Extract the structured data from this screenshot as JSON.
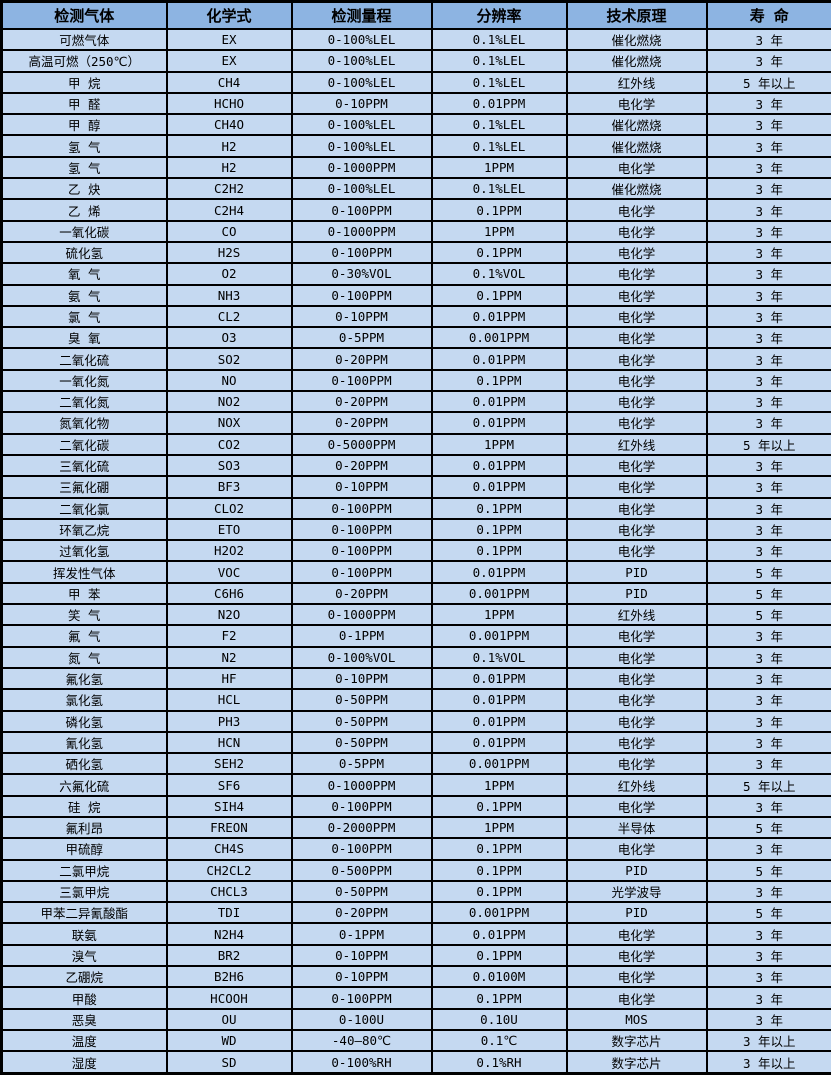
{
  "colors": {
    "header_bg": "#8DB4E2",
    "row_bg": "#C5D9F1",
    "border": "#000000",
    "text": "#000000"
  },
  "table": {
    "columns": [
      "检测气体",
      "化学式",
      "检测量程",
      "分辨率",
      "技术原理",
      "寿 命"
    ],
    "rows": [
      [
        "可燃气体",
        "EX",
        "0-100%LEL",
        "0.1%LEL",
        "催化燃烧",
        "3 年"
      ],
      [
        "高温可燃（250℃）",
        "EX",
        "0-100%LEL",
        "0.1%LEL",
        "催化燃烧",
        "3 年"
      ],
      [
        "甲 烷",
        "CH4",
        "0-100%LEL",
        "0.1%LEL",
        "红外线",
        "5 年以上"
      ],
      [
        "甲 醛",
        "HCHO",
        "0-10PPM",
        "0.01PPM",
        "电化学",
        "3 年"
      ],
      [
        "甲 醇",
        "CH4O",
        "0-100%LEL",
        "0.1%LEL",
        "催化燃烧",
        "3 年"
      ],
      [
        "氢 气",
        "H2",
        "0-100%LEL",
        "0.1%LEL",
        "催化燃烧",
        "3 年"
      ],
      [
        "氢 气",
        "H2",
        "0-1000PPM",
        "1PPM",
        "电化学",
        "3 年"
      ],
      [
        "乙 炔",
        "C2H2",
        "0-100%LEL",
        "0.1%LEL",
        "催化燃烧",
        "3 年"
      ],
      [
        "乙 烯",
        "C2H4",
        "0-100PPM",
        "0.1PPM",
        "电化学",
        "3 年"
      ],
      [
        "一氧化碳",
        "CO",
        "0-1000PPM",
        "1PPM",
        "电化学",
        "3 年"
      ],
      [
        "硫化氢",
        "H2S",
        "0-100PPM",
        "0.1PPM",
        "电化学",
        "3 年"
      ],
      [
        "氧 气",
        "O2",
        "0-30%VOL",
        "0.1%VOL",
        "电化学",
        "3 年"
      ],
      [
        "氨 气",
        "NH3",
        "0-100PPM",
        "0.1PPM",
        "电化学",
        "3 年"
      ],
      [
        "氯 气",
        "CL2",
        "0-10PPM",
        "0.01PPM",
        "电化学",
        "3 年"
      ],
      [
        "臭 氧",
        "O3",
        "0-5PPM",
        "0.001PPM",
        "电化学",
        "3 年"
      ],
      [
        "二氧化硫",
        "SO2",
        "0-20PPM",
        "0.01PPM",
        "电化学",
        "3 年"
      ],
      [
        "一氧化氮",
        "NO",
        "0-100PPM",
        "0.1PPM",
        "电化学",
        "3 年"
      ],
      [
        "二氧化氮",
        "NO2",
        "0-20PPM",
        "0.01PPM",
        "电化学",
        "3 年"
      ],
      [
        "氮氧化物",
        "NOX",
        "0-20PPM",
        "0.01PPM",
        "电化学",
        "3 年"
      ],
      [
        "二氧化碳",
        "CO2",
        "0-5000PPM",
        "1PPM",
        "红外线",
        "5 年以上"
      ],
      [
        "三氧化硫",
        "SO3",
        "0-20PPM",
        "0.01PPM",
        "电化学",
        "3 年"
      ],
      [
        "三氟化硼",
        "BF3",
        "0-10PPM",
        "0.01PPM",
        "电化学",
        "3 年"
      ],
      [
        "二氧化氯",
        "CLO2",
        "0-100PPM",
        "0.1PPM",
        "电化学",
        "3 年"
      ],
      [
        "环氧乙烷",
        "ETO",
        "0-100PPM",
        "0.1PPM",
        "电化学",
        "3 年"
      ],
      [
        "过氧化氢",
        "H2O2",
        "0-100PPM",
        "0.1PPM",
        "电化学",
        "3 年"
      ],
      [
        "挥发性气体",
        "VOC",
        "0-100PPM",
        "0.01PPM",
        "PID",
        "5 年"
      ],
      [
        "甲 苯",
        "C6H6",
        "0-20PPM",
        "0.001PPM",
        "PID",
        "5 年"
      ],
      [
        "笑 气",
        "N2O",
        "0-1000PPM",
        "1PPM",
        "红外线",
        "5 年"
      ],
      [
        "氟 气",
        "F2",
        "0-1PPM",
        "0.001PPM",
        "电化学",
        "3 年"
      ],
      [
        "氮 气",
        "N2",
        "0-100%VOL",
        "0.1%VOL",
        "电化学",
        "3 年"
      ],
      [
        "氟化氢",
        "HF",
        "0-10PPM",
        "0.01PPM",
        "电化学",
        "3 年"
      ],
      [
        "氯化氢",
        "HCL",
        "0-50PPM",
        "0.01PPM",
        "电化学",
        "3 年"
      ],
      [
        "磷化氢",
        "PH3",
        "0-50PPM",
        "0.01PPM",
        "电化学",
        "3 年"
      ],
      [
        "氰化氢",
        "HCN",
        "0-50PPM",
        "0.01PPM",
        "电化学",
        "3 年"
      ],
      [
        "硒化氢",
        "SEH2",
        "0-5PPM",
        "0.001PPM",
        "电化学",
        "3 年"
      ],
      [
        "六氟化硫",
        "SF6",
        "0-1000PPM",
        "1PPM",
        "红外线",
        "5 年以上"
      ],
      [
        "硅 烷",
        "SIH4",
        "0-100PPM",
        "0.1PPM",
        "电化学",
        "3 年"
      ],
      [
        "氟利昂",
        "FREON",
        "0-2000PPM",
        "1PPM",
        "半导体",
        "5 年"
      ],
      [
        "甲硫醇",
        "CH4S",
        "0-100PPM",
        "0.1PPM",
        "电化学",
        "3 年"
      ],
      [
        "二氯甲烷",
        "CH2CL2",
        "0-500PPM",
        "0.1PPM",
        "PID",
        "5 年"
      ],
      [
        "三氯甲烷",
        "CHCL3",
        "0-50PPM",
        "0.1PPM",
        "光学波导",
        "3 年"
      ],
      [
        "甲苯二异氰酸酯",
        "TDI",
        "0-20PPM",
        "0.001PPM",
        "PID",
        "5 年"
      ],
      [
        "联氨",
        "N2H4",
        "0-1PPM",
        "0.01PPM",
        "电化学",
        "3 年"
      ],
      [
        "溴气",
        "BR2",
        "0-10PPM",
        "0.1PPM",
        "电化学",
        "3 年"
      ],
      [
        "乙硼烷",
        "B2H6",
        "0-10PPM",
        "0.0100M",
        "电化学",
        "3 年"
      ],
      [
        "甲酸",
        "HCOOH",
        "0-100PPM",
        "0.1PPM",
        "电化学",
        "3 年"
      ],
      [
        "恶臭",
        "OU",
        "0-100U",
        "0.10U",
        "MOS",
        "3 年"
      ],
      [
        "温度",
        "WD",
        "-40—80℃",
        "0.1℃",
        "数字芯片",
        "3 年以上"
      ],
      [
        "湿度",
        "SD",
        "0-100%RH",
        "0.1%RH",
        "数字芯片",
        "3 年以上"
      ]
    ]
  }
}
